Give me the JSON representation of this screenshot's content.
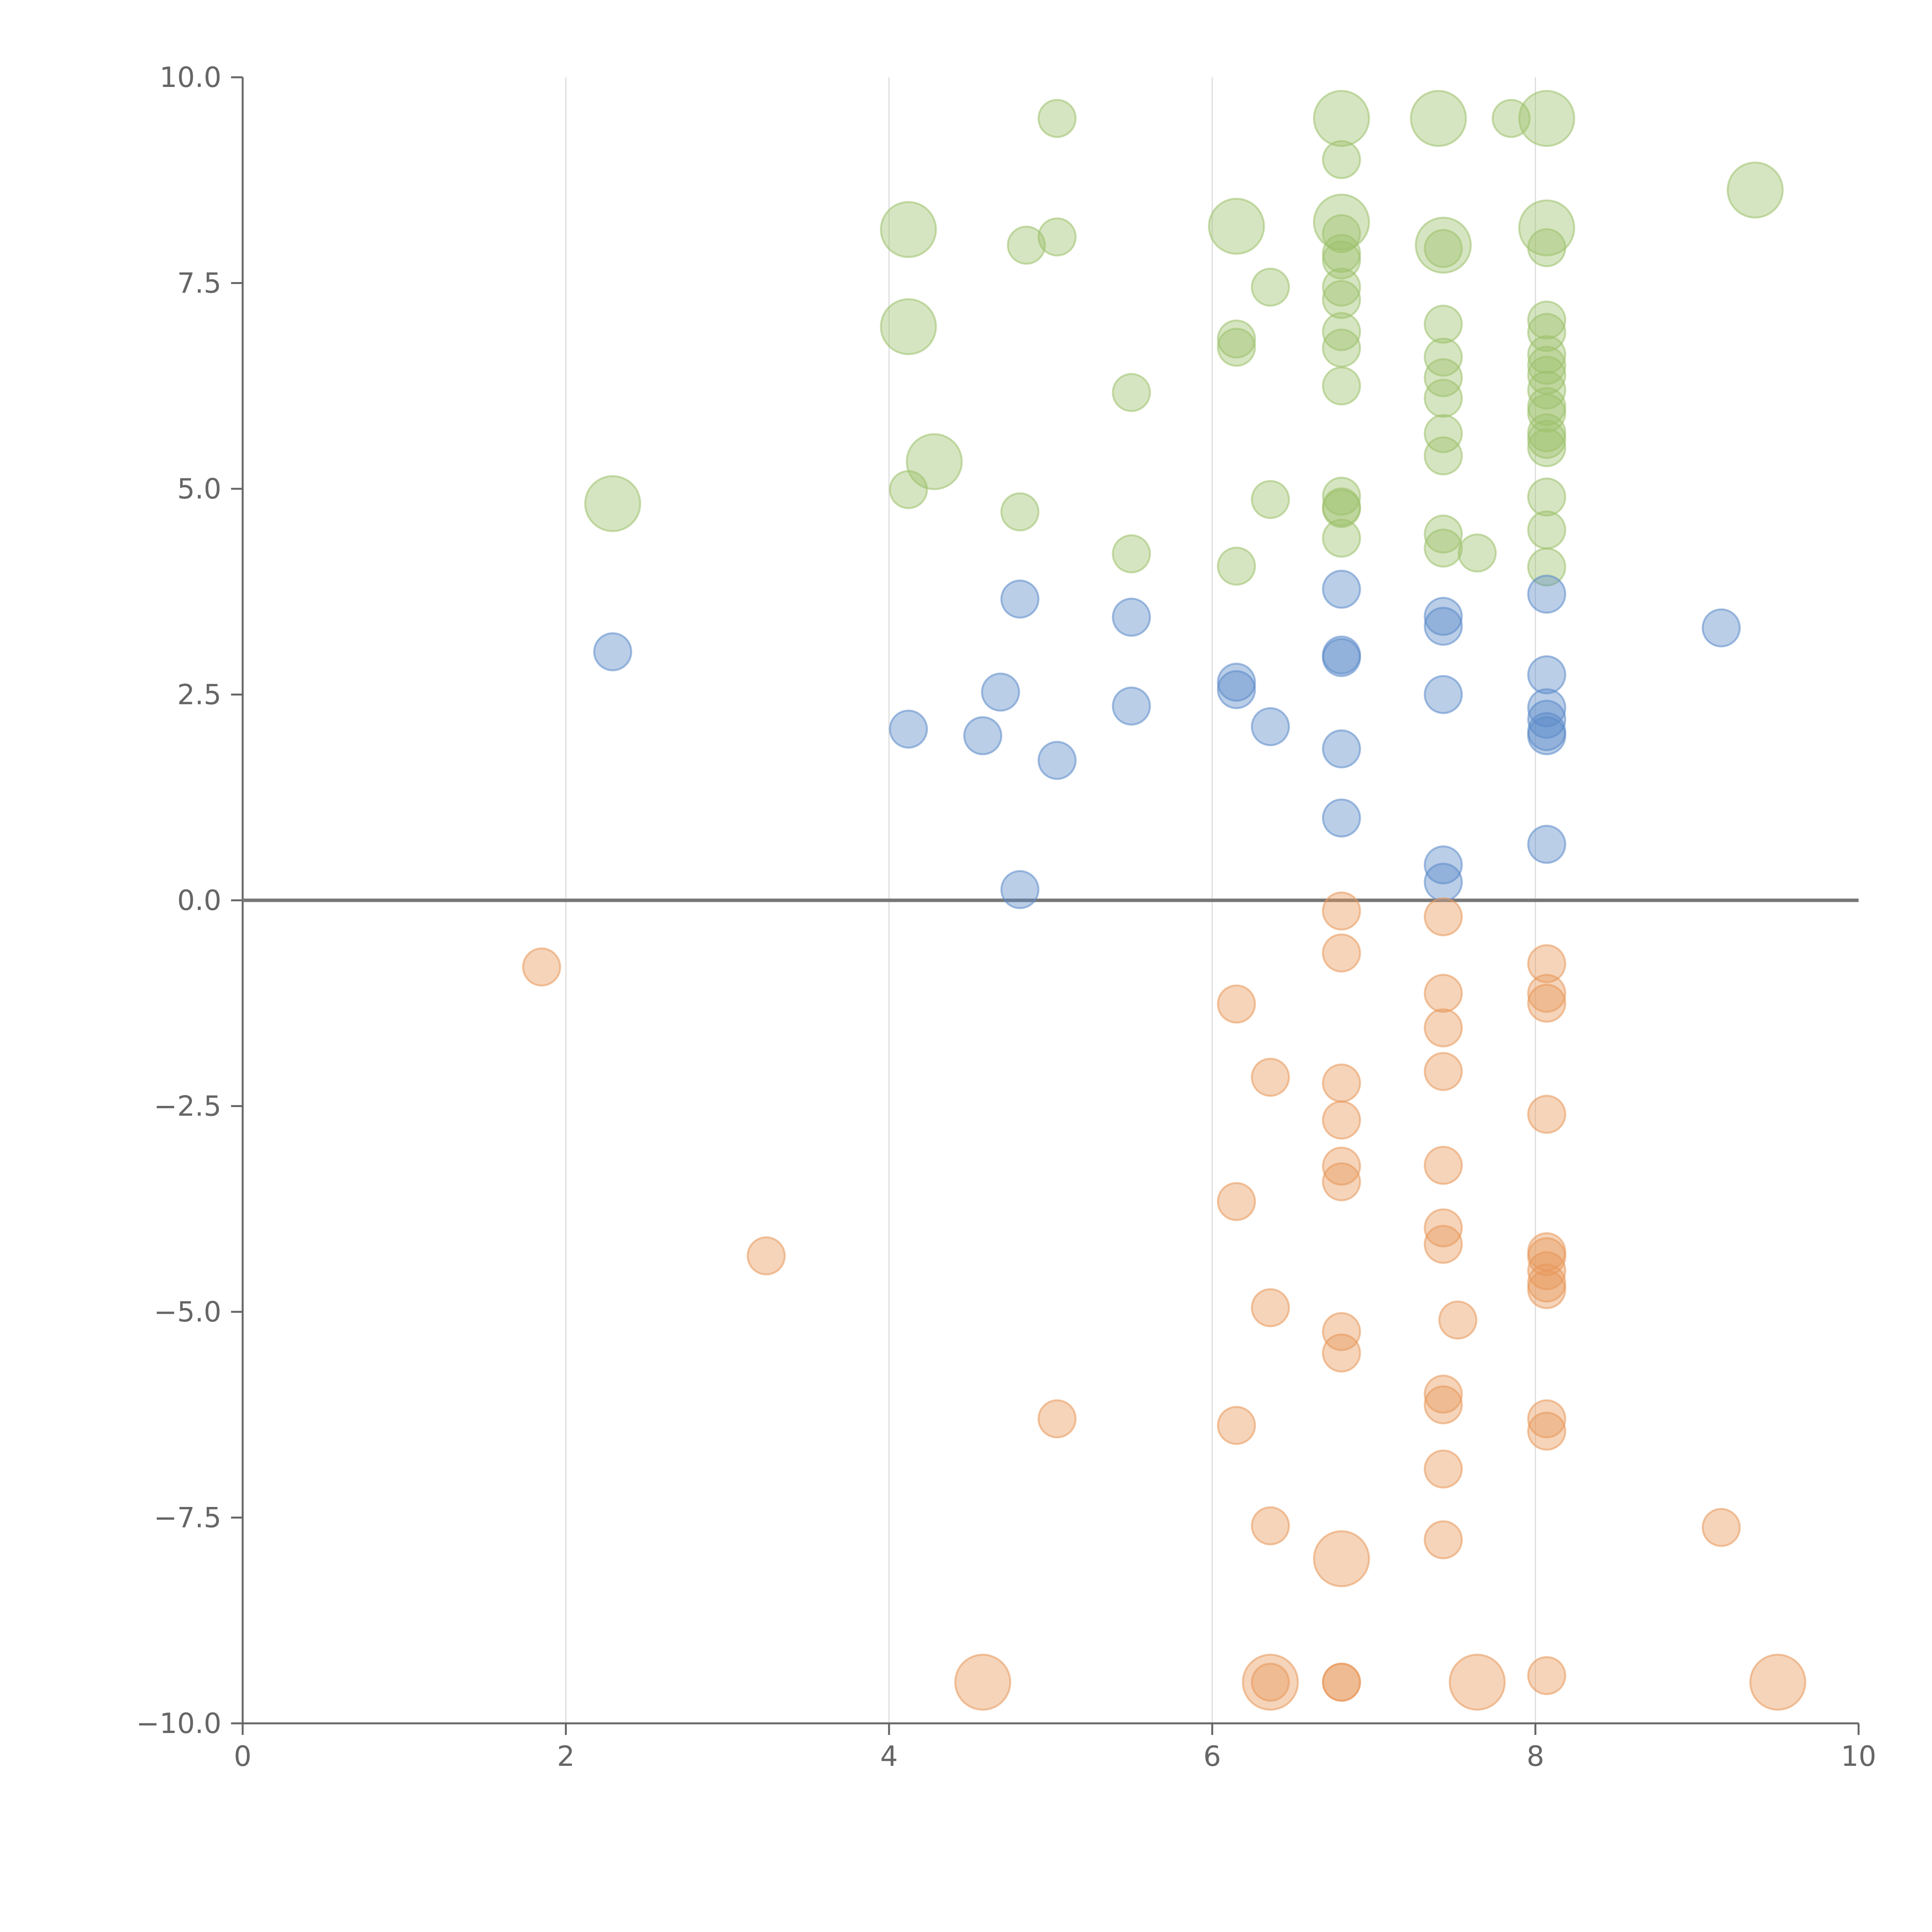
{
  "chart_data": {
    "type": "scatter",
    "title": "",
    "xlabel": "",
    "ylabel": "",
    "xlim": [
      0,
      10
    ],
    "ylim": [
      -10,
      10
    ],
    "x_ticks": [
      0,
      2,
      4,
      6,
      8,
      10
    ],
    "y_ticks": [
      -10,
      -7.5,
      -5,
      -2.5,
      0,
      2.5,
      5,
      7.5,
      10
    ],
    "x_tick_labels": [
      "0",
      "2",
      "4",
      "6",
      "8",
      "10"
    ],
    "y_tick_labels": [
      "−10.0",
      "−7.5",
      "−5.0",
      "−2.5",
      "0.0",
      "2.5",
      "5.0",
      "7.5",
      "10.0"
    ],
    "vertical_grid": true,
    "zero_line": true,
    "legend": "none",
    "series": [
      {
        "color": "#9dc16b",
        "points": [
          [
            2.29,
            4.82,
            2.2
          ],
          [
            4.12,
            8.15,
            2.2
          ],
          [
            4.12,
            6.97,
            2.2
          ],
          [
            4.28,
            5.33,
            2.2
          ],
          [
            4.12,
            4.99,
            1
          ],
          [
            4.85,
            7.96,
            1
          ],
          [
            5.04,
            8.06,
            1
          ],
          [
            5.04,
            9.5,
            1
          ],
          [
            4.81,
            4.72,
            1
          ],
          [
            5.5,
            6.17,
            1
          ],
          [
            5.5,
            4.21,
            1
          ],
          [
            6.15,
            8.19,
            2.2
          ],
          [
            6.15,
            6.82,
            1
          ],
          [
            6.15,
            6.72,
            1
          ],
          [
            6.15,
            4.06,
            1
          ],
          [
            6.36,
            7.45,
            1
          ],
          [
            6.36,
            4.87,
            1
          ],
          [
            6.8,
            9.5,
            2.2
          ],
          [
            6.8,
            8.24,
            2.2
          ],
          [
            6.8,
            9.0,
            1
          ],
          [
            6.8,
            8.1,
            1
          ],
          [
            6.8,
            7.86,
            1
          ],
          [
            6.8,
            7.78,
            1
          ],
          [
            6.8,
            7.45,
            1
          ],
          [
            6.8,
            7.3,
            1
          ],
          [
            6.8,
            6.91,
            1
          ],
          [
            6.8,
            6.71,
            1
          ],
          [
            6.8,
            6.25,
            1
          ],
          [
            6.8,
            4.91,
            1
          ],
          [
            6.8,
            4.78,
            1
          ],
          [
            6.8,
            4.76,
            1
          ],
          [
            6.8,
            4.4,
            1
          ],
          [
            7.4,
            9.5,
            2.2
          ],
          [
            7.43,
            7.96,
            2.2
          ],
          [
            7.43,
            7.92,
            1
          ],
          [
            7.43,
            7.0,
            1
          ],
          [
            7.43,
            6.6,
            1
          ],
          [
            7.43,
            6.35,
            1
          ],
          [
            7.43,
            6.1,
            1
          ],
          [
            7.43,
            5.67,
            1
          ],
          [
            7.43,
            5.4,
            1
          ],
          [
            7.43,
            4.45,
            1
          ],
          [
            7.43,
            4.28,
            1
          ],
          [
            7.64,
            4.22,
            1
          ],
          [
            7.85,
            9.5,
            1
          ],
          [
            8.07,
            9.5,
            2.2
          ],
          [
            8.07,
            8.17,
            2.2
          ],
          [
            8.07,
            7.93,
            1
          ],
          [
            8.07,
            7.05,
            1
          ],
          [
            8.07,
            6.9,
            1
          ],
          [
            8.07,
            6.63,
            1
          ],
          [
            8.07,
            6.5,
            1
          ],
          [
            8.07,
            6.38,
            1
          ],
          [
            8.07,
            6.2,
            1
          ],
          [
            8.07,
            6.0,
            1
          ],
          [
            8.07,
            5.92,
            1
          ],
          [
            8.07,
            5.68,
            1
          ],
          [
            8.07,
            5.6,
            1
          ],
          [
            8.07,
            5.5,
            1
          ],
          [
            8.07,
            4.9,
            1
          ],
          [
            8.07,
            4.5,
            1
          ],
          [
            8.07,
            4.05,
            1
          ],
          [
            9.36,
            8.63,
            2.2
          ]
        ]
      },
      {
        "color": "#5b8ac8",
        "points": [
          [
            2.29,
            3.02,
            1
          ],
          [
            4.12,
            2.08,
            1
          ],
          [
            4.58,
            2.0,
            1
          ],
          [
            4.69,
            2.53,
            1
          ],
          [
            4.81,
            3.66,
            1
          ],
          [
            4.81,
            0.13,
            1
          ],
          [
            5.04,
            1.7,
            1
          ],
          [
            5.5,
            3.44,
            1
          ],
          [
            5.5,
            2.36,
            1
          ],
          [
            6.15,
            2.65,
            1
          ],
          [
            6.15,
            2.56,
            1
          ],
          [
            6.36,
            2.11,
            1
          ],
          [
            6.8,
            3.78,
            1
          ],
          [
            6.8,
            2.98,
            1
          ],
          [
            6.8,
            2.95,
            1
          ],
          [
            6.8,
            1.84,
            1
          ],
          [
            6.8,
            1.0,
            1
          ],
          [
            7.43,
            3.45,
            1
          ],
          [
            7.43,
            3.33,
            1
          ],
          [
            7.43,
            2.5,
            1
          ],
          [
            7.43,
            0.43,
            1
          ],
          [
            7.43,
            0.22,
            1
          ],
          [
            8.07,
            3.72,
            1
          ],
          [
            8.07,
            2.74,
            1
          ],
          [
            8.07,
            2.34,
            1
          ],
          [
            8.07,
            2.2,
            1
          ],
          [
            8.07,
            2.05,
            1
          ],
          [
            8.07,
            2.0,
            1
          ],
          [
            8.07,
            0.68,
            1
          ],
          [
            9.15,
            3.31,
            1
          ]
        ]
      },
      {
        "color": "#e8985a",
        "points": [
          [
            1.85,
            -0.81,
            1
          ],
          [
            3.24,
            -4.32,
            1
          ],
          [
            4.58,
            -9.5,
            2.2
          ],
          [
            5.04,
            -6.3,
            1
          ],
          [
            6.15,
            -1.26,
            1
          ],
          [
            6.15,
            -3.66,
            1
          ],
          [
            6.15,
            -6.38,
            1
          ],
          [
            6.36,
            -2.15,
            1
          ],
          [
            6.36,
            -4.95,
            1
          ],
          [
            6.36,
            -7.6,
            1
          ],
          [
            6.36,
            -9.5,
            2.2
          ],
          [
            6.36,
            -9.5,
            1
          ],
          [
            6.8,
            -0.13,
            1
          ],
          [
            6.8,
            -0.64,
            1
          ],
          [
            6.8,
            -2.22,
            1
          ],
          [
            6.8,
            -2.67,
            1
          ],
          [
            6.8,
            -3.23,
            1
          ],
          [
            6.8,
            -3.42,
            1
          ],
          [
            6.8,
            -5.24,
            1
          ],
          [
            6.8,
            -5.5,
            1
          ],
          [
            6.8,
            -8.0,
            2.2
          ],
          [
            6.8,
            -9.5,
            1
          ],
          [
            6.8,
            -9.5,
            1
          ],
          [
            7.43,
            -0.2,
            1
          ],
          [
            7.43,
            -1.13,
            1
          ],
          [
            7.43,
            -1.55,
            1
          ],
          [
            7.43,
            -2.08,
            1
          ],
          [
            7.43,
            -3.22,
            1
          ],
          [
            7.43,
            -3.98,
            1
          ],
          [
            7.43,
            -4.18,
            1
          ],
          [
            7.43,
            -6.0,
            1
          ],
          [
            7.43,
            -6.13,
            1
          ],
          [
            7.43,
            -6.91,
            1
          ],
          [
            7.43,
            -7.77,
            1
          ],
          [
            7.52,
            -5.1,
            1
          ],
          [
            7.64,
            -9.5,
            2.2
          ],
          [
            8.07,
            -0.77,
            1
          ],
          [
            8.07,
            -1.13,
            1
          ],
          [
            8.07,
            -1.25,
            1
          ],
          [
            8.07,
            -2.6,
            1
          ],
          [
            8.07,
            -4.27,
            1
          ],
          [
            8.07,
            -4.33,
            1
          ],
          [
            8.07,
            -4.5,
            1
          ],
          [
            8.07,
            -4.65,
            1
          ],
          [
            8.07,
            -4.73,
            1
          ],
          [
            8.07,
            -6.3,
            1
          ],
          [
            8.07,
            -6.45,
            1
          ],
          [
            8.07,
            -9.42,
            1
          ],
          [
            9.15,
            -7.62,
            1
          ],
          [
            9.5,
            -9.5,
            2.2
          ]
        ]
      }
    ]
  }
}
